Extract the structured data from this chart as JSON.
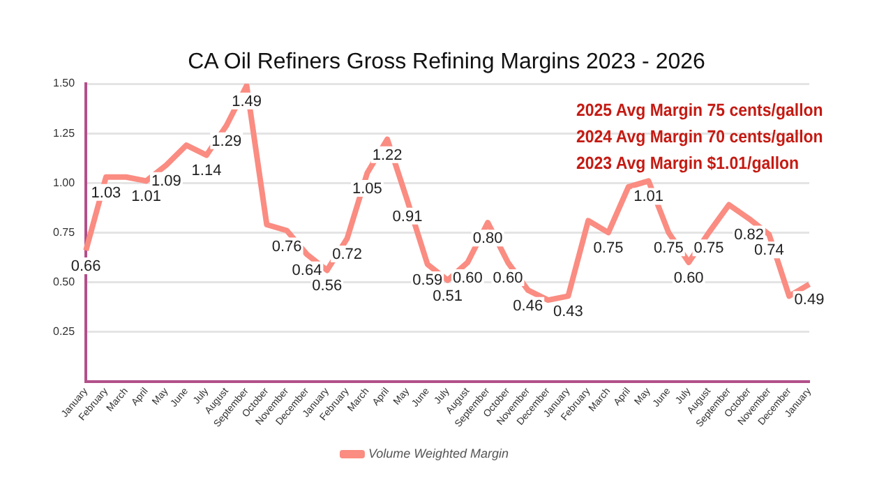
{
  "chart_data": {
    "type": "line",
    "title": "CA Oil Refiners Gross Refining Margins 2023 - 2026",
    "categories": [
      "January",
      "February",
      "March",
      "April",
      "May",
      "June",
      "July",
      "August",
      "September",
      "October",
      "November",
      "December",
      "January",
      "February",
      "March",
      "April",
      "May",
      "June",
      "July",
      "August",
      "September",
      "October",
      "November",
      "December",
      "January",
      "February",
      "March",
      "April",
      "May",
      "June",
      "July",
      "August",
      "September",
      "October",
      "November",
      "December",
      "January"
    ],
    "series": [
      {
        "name": "Volume Weighted Margin",
        "color": "#fa8c82",
        "values": [
          0.66,
          1.03,
          1.03,
          1.01,
          1.09,
          1.19,
          1.14,
          1.29,
          1.49,
          0.79,
          0.76,
          0.64,
          0.56,
          0.72,
          1.05,
          1.22,
          0.91,
          0.59,
          0.51,
          0.6,
          0.8,
          0.6,
          0.46,
          0.41,
          0.43,
          0.81,
          0.75,
          0.98,
          1.01,
          0.75,
          0.6,
          0.75,
          0.89,
          0.82,
          0.74,
          0.43,
          0.49
        ],
        "value_labels": [
          "0.66",
          "1.03",
          null,
          "1.01",
          "1.09",
          null,
          "1.14",
          "1.29",
          "1.49",
          null,
          "0.76",
          "0.64",
          "0.56",
          "0.72",
          "1.05",
          "1.22",
          "0.91",
          "0.59",
          "0.51",
          "0.60",
          "0.80",
          "0.60",
          "0.46",
          null,
          "0.43",
          null,
          "0.75",
          null,
          "1.01",
          "0.75",
          "0.60",
          "0.75",
          null,
          "0.82",
          "0.74",
          null,
          "0.49"
        ]
      }
    ],
    "ylim": [
      0,
      1.5
    ],
    "yticks": [
      {
        "value": 0,
        "label": null
      },
      {
        "value": 0.25,
        "label": "0.25"
      },
      {
        "value": 0.5,
        "label": "0.50"
      },
      {
        "value": 0.75,
        "label": "0.75"
      },
      {
        "value": 1,
        "label": "1.00"
      },
      {
        "value": 1.25,
        "label": "1.25"
      },
      {
        "value": 1.5,
        "label": "1.50"
      }
    ],
    "grid": "y",
    "legend": "bottom",
    "marker": "none",
    "line_style": "solid",
    "annotations": [
      "2025 Avg Margin 75 cents/gallon",
      "2024 Avg Margin 70 cents/gallon",
      "2023 Avg Margin $1.01/gallon"
    ]
  }
}
